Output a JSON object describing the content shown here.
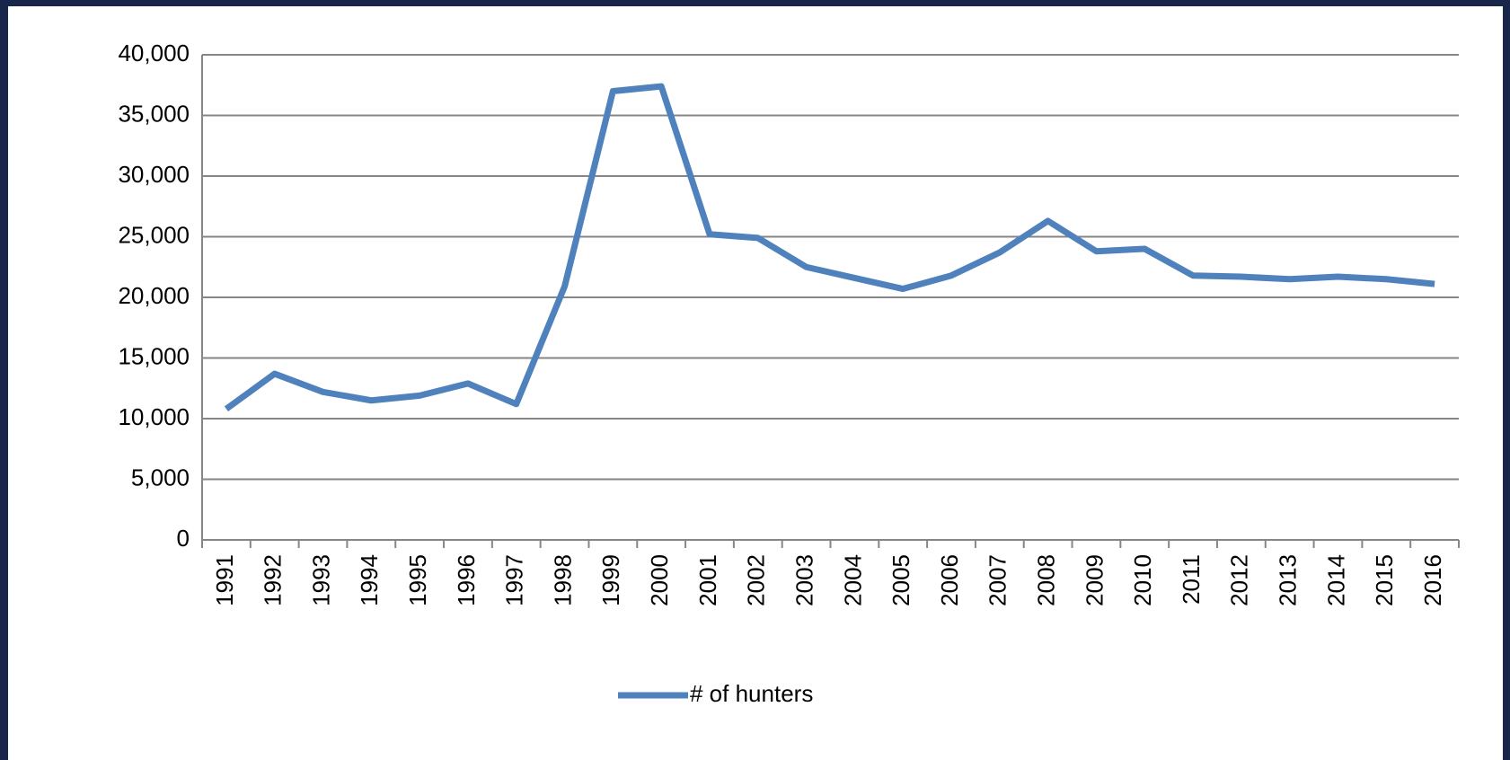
{
  "chart_data": {
    "type": "line",
    "categories": [
      "1991",
      "1992",
      "1993",
      "1994",
      "1995",
      "1996",
      "1997",
      "1998",
      "1999",
      "2000",
      "2001",
      "2002",
      "2003",
      "2004",
      "2005",
      "2006",
      "2007",
      "2008",
      "2009",
      "2010",
      "2011",
      "2012",
      "2013",
      "2014",
      "2015",
      "2016"
    ],
    "series": [
      {
        "name": "# of hunters",
        "color": "#4f81bd",
        "values": [
          10800,
          13700,
          12200,
          11500,
          11900,
          12900,
          11200,
          20900,
          37000,
          37400,
          25200,
          24900,
          22500,
          21600,
          20700,
          21800,
          23700,
          26300,
          23800,
          24000,
          21800,
          21700,
          21500,
          21700,
          21500,
          21100
        ]
      }
    ],
    "ylim": [
      0,
      40000
    ],
    "yticks": [
      0,
      {
        "value": 5000,
        "label": "5,000"
      },
      {
        "value": 10000,
        "label": "10,000"
      },
      {
        "value": 15000,
        "label": "15,000"
      },
      {
        "value": 20000,
        "label": "20,000"
      },
      {
        "value": 25000,
        "label": "25,000"
      },
      {
        "value": 30000,
        "label": "30,000"
      },
      {
        "value": 35000,
        "label": "35,000"
      },
      {
        "value": 40000,
        "label": "40,000"
      }
    ],
    "grid": true,
    "legend": "bottom"
  }
}
